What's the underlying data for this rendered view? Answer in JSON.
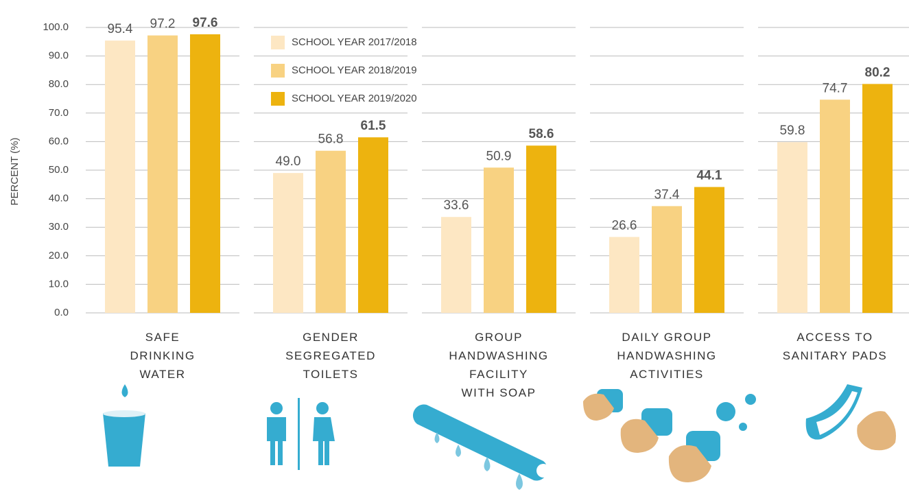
{
  "chart_data": {
    "type": "bar",
    "y_label": "PERCENT (%)",
    "categories": [
      "SAFE\nDRINKING\nWATER",
      "GENDER\nSEGREGATED\nTOILETS",
      "GROUP\nHANDWASHING\nFACILITY\nWITH SOAP",
      "DAILY GROUP\nHANDWASHING\nACTIVITIES",
      "ACCESS TO\nSANITARY PADS"
    ],
    "series": [
      {
        "name": "SCHOOL YEAR 2017/2018",
        "color": "#fde7c3",
        "values": [
          95.4,
          49.0,
          33.6,
          26.6,
          59.8
        ],
        "value_labels": [
          "95.4",
          "49.0",
          "33.6",
          "26.6",
          "59.8"
        ]
      },
      {
        "name": "SCHOOL YEAR 2018/2019",
        "color": "#f8d282",
        "values": [
          97.2,
          56.8,
          50.9,
          37.4,
          74.7
        ],
        "value_labels": [
          "97.2",
          "56.8",
          "50.9",
          "37.4",
          "74.7"
        ]
      },
      {
        "name": "SCHOOL YEAR 2019/2020",
        "color": "#edb30f",
        "values": [
          97.6,
          61.5,
          58.6,
          44.1,
          80.2
        ],
        "value_labels": [
          "97.6",
          "61.5",
          "58.6",
          "44.1",
          "80.2"
        ]
      }
    ],
    "ylim": [
      0,
      100
    ],
    "yticks": [
      {
        "value": 0,
        "label": "0.0"
      },
      {
        "value": 10,
        "label": "10.0"
      },
      {
        "value": 20,
        "label": "20.0"
      },
      {
        "value": 30,
        "label": "30.0"
      },
      {
        "value": 40,
        "label": "40.0"
      },
      {
        "value": 50,
        "label": "50.0"
      },
      {
        "value": 60,
        "label": "60.0"
      },
      {
        "value": 70,
        "label": "70.0"
      },
      {
        "value": 80,
        "label": "80.0"
      },
      {
        "value": 90,
        "label": "90.0"
      },
      {
        "value": 100,
        "label": "100.0"
      }
    ],
    "grid": true,
    "legend": "top"
  }
}
